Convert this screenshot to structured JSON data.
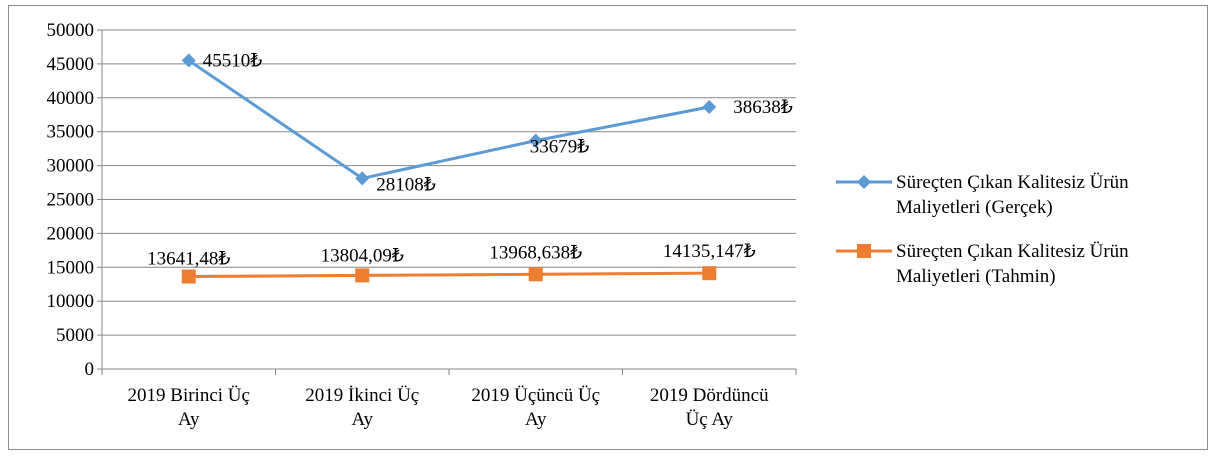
{
  "chart_data": {
    "type": "line",
    "title": "",
    "xlabel": "",
    "ylabel": "",
    "ylim": [
      0,
      50000
    ],
    "ytick_step": 5000,
    "grid": "horizontal",
    "legend_position": "right",
    "categories": [
      [
        "2019 Birinci Üç",
        "Ay"
      ],
      [
        "2019 İkinci Üç",
        "Ay"
      ],
      [
        "2019 Üçüncü Üç",
        "Ay"
      ],
      [
        "2019 Dördüncü",
        "Üç Ay"
      ]
    ],
    "series": [
      {
        "name": [
          "Süreçten Çıkan Kalitesiz Ürün",
          "Maliyetleri (Gerçek)"
        ],
        "color": "#5B9BD5",
        "marker": "diamond",
        "values": [
          45510,
          28108,
          33679,
          38638
        ],
        "labels": [
          "45510₺",
          "28108₺",
          "33679₺",
          "38638₺"
        ]
      },
      {
        "name": [
          "Süreçten Çıkan Kalitesiz Ürün",
          "Maliyetleri (Tahmin)"
        ],
        "color": "#ED7D31",
        "marker": "square",
        "values": [
          13641.48,
          13804.09,
          13968.638,
          14135.147
        ],
        "labels": [
          "13641,48₺",
          "13804,09₺",
          "13968,638₺",
          "14135,147₺"
        ]
      }
    ]
  }
}
